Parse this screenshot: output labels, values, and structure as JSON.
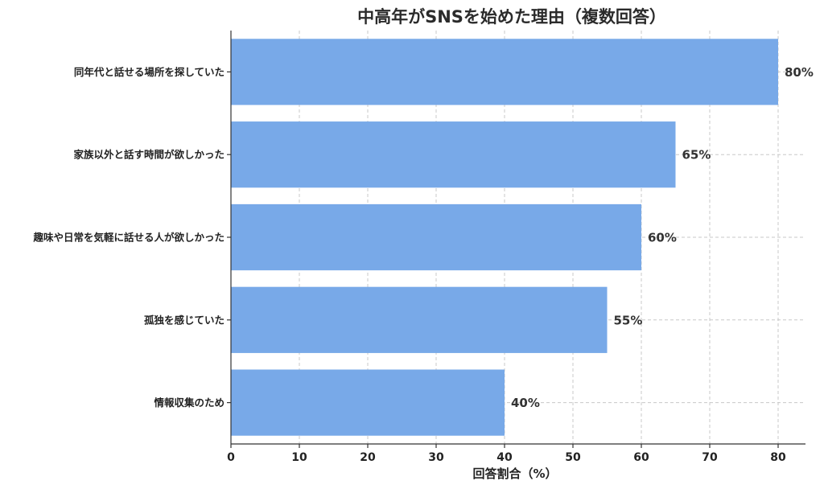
{
  "chart_data": {
    "type": "bar",
    "orientation": "horizontal",
    "title": "中高年がSNSを始めた理由（複数回答）",
    "xlabel": "回答割合（%）",
    "ylabel": "",
    "categories": [
      "同年代と話せる場所を探していた",
      "家族以外と話す時間が欲しかった",
      "趣味や日常を気軽に話せる人が欲しかった",
      "孤独を感じていた",
      "情報収集のため"
    ],
    "values": [
      80,
      65,
      60,
      55,
      40
    ],
    "data_labels": [
      "80%",
      "65%",
      "60%",
      "55%",
      "40%"
    ],
    "xlim": [
      0,
      84
    ],
    "xticks": [
      0,
      10,
      20,
      30,
      40,
      50,
      60,
      70,
      80
    ],
    "grid": true,
    "bar_color": "#78a9e8"
  }
}
